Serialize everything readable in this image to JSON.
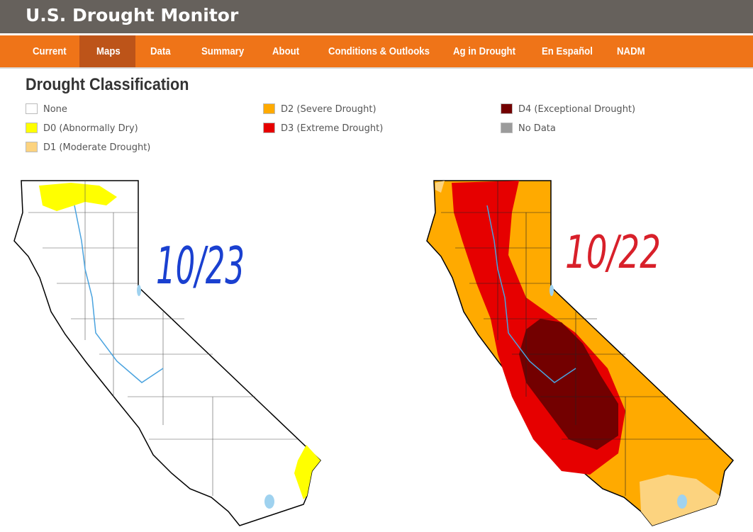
{
  "header": {
    "title": "U.S. Drought Monitor"
  },
  "nav": [
    "Current",
    "Maps",
    "Data",
    "Summary",
    "About",
    "Conditions & Outlooks",
    "Ag in Drought",
    "En Español",
    "NADM"
  ],
  "legend": {
    "title": "Drought Classification",
    "items": [
      {
        "label": "None",
        "color": "#ffffff"
      },
      {
        "label": "D0 (Abnormally Dry)",
        "color": "#ffff00"
      },
      {
        "label": "D1 (Moderate Drought)",
        "color": "#fcd37f"
      },
      {
        "label": "D2 (Severe Drought)",
        "color": "#ffaa00"
      },
      {
        "label": "D3 (Extreme Drought)",
        "color": "#e60000"
      },
      {
        "label": "D4 (Exceptional Drought)",
        "color": "#730000"
      },
      {
        "label": "No Data",
        "color": "#9b9b9b"
      }
    ]
  },
  "maps": [
    {
      "annotation": "10/23"
    },
    {
      "annotation": "10/22"
    }
  ]
}
